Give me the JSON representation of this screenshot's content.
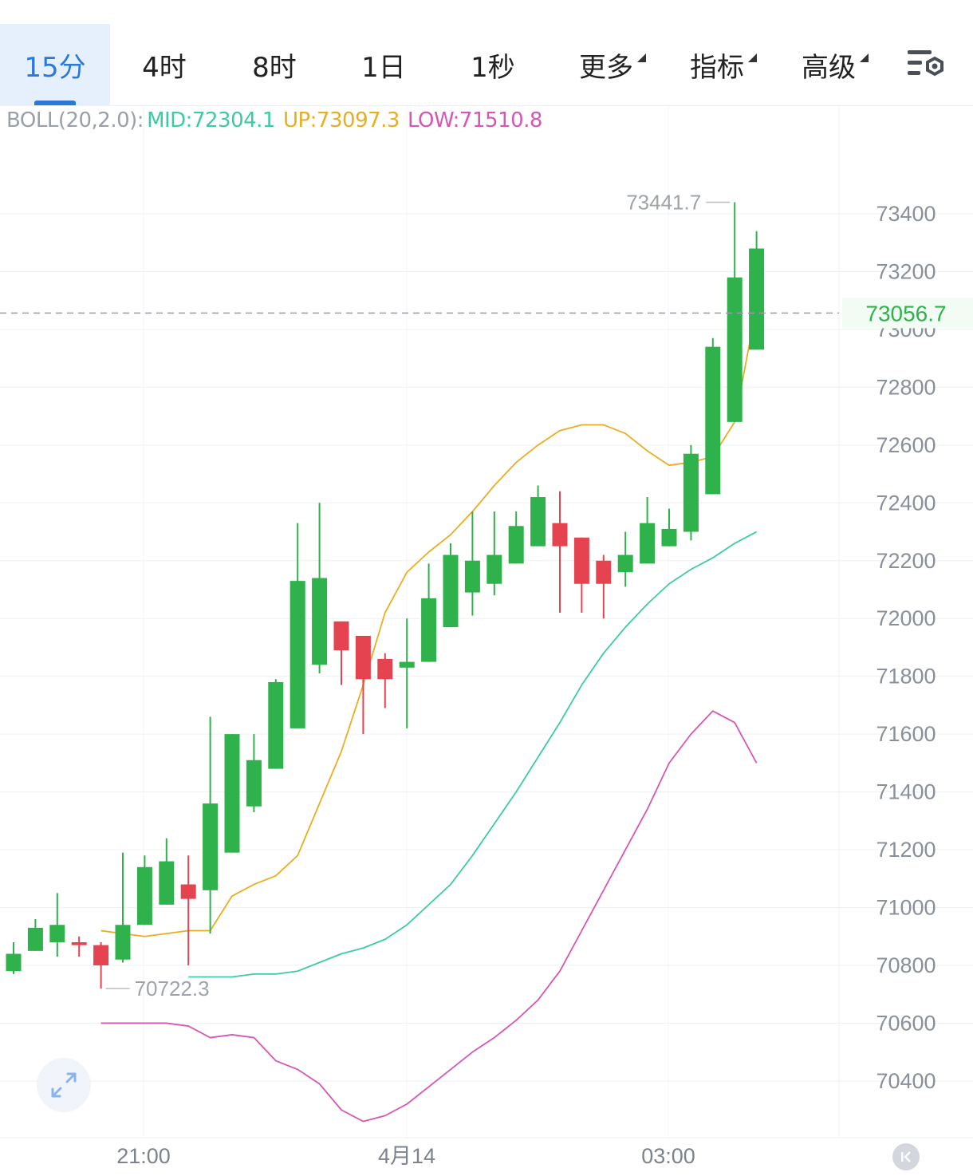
{
  "tabs": [
    {
      "label": "15分",
      "active": true
    },
    {
      "label": "4时"
    },
    {
      "label": "8时"
    },
    {
      "label": "1日"
    },
    {
      "label": "1秒"
    }
  ],
  "menus": [
    {
      "label": "更多"
    },
    {
      "label": "指标"
    },
    {
      "label": "高级"
    }
  ],
  "icons": {
    "settings": "chart-settings-icon",
    "expand": "expand-arrows-icon",
    "scroll": "scroll-to-latest-icon"
  },
  "legend": {
    "name": "BOLL(20,2.0):",
    "mid": "MID:72304.1",
    "up": "UP:73097.3",
    "low": "LOW:71510.8"
  },
  "colors": {
    "up_candle": "#2fb14b",
    "down_candle": "#e5434f",
    "mid_line": "#3ccba6",
    "up_line": "#e9ae20",
    "low_line": "#d656b4",
    "accent": "#2a78d8",
    "price_tag": "#2fb14b"
  },
  "chart_data": {
    "type": "candlestick",
    "y_ticks": [
      73400,
      73200,
      73000,
      72800,
      72600,
      72400,
      72200,
      72000,
      71800,
      71600,
      71400,
      71200,
      71000,
      70800,
      70600,
      70400
    ],
    "x_ticks": [
      "21:00",
      "4月14",
      "03:00"
    ],
    "y_range": [
      70250,
      73800
    ],
    "current_price": "73056.7",
    "max_label": "73441.7",
    "min_label": "70722.3",
    "candles": [
      {
        "o": 70780,
        "h": 70880,
        "l": 70770,
        "c": 70840
      },
      {
        "o": 70850,
        "h": 70960,
        "l": 70850,
        "c": 70930
      },
      {
        "o": 70880,
        "h": 71050,
        "l": 70830,
        "c": 70940
      },
      {
        "o": 70880,
        "h": 70900,
        "l": 70830,
        "c": 70870
      },
      {
        "o": 70870,
        "h": 70880,
        "l": 70720,
        "c": 70800
      },
      {
        "o": 70820,
        "h": 71190,
        "l": 70810,
        "c": 70940
      },
      {
        "o": 70940,
        "h": 71180,
        "l": 70940,
        "c": 71140
      },
      {
        "o": 71010,
        "h": 71240,
        "l": 71010,
        "c": 71160
      },
      {
        "o": 71080,
        "h": 71180,
        "l": 70800,
        "c": 71030
      },
      {
        "o": 71060,
        "h": 71660,
        "l": 70910,
        "c": 71360
      },
      {
        "o": 71190,
        "h": 71600,
        "l": 71190,
        "c": 71600
      },
      {
        "o": 71350,
        "h": 71600,
        "l": 71330,
        "c": 71510
      },
      {
        "o": 71480,
        "h": 71790,
        "l": 71480,
        "c": 71780
      },
      {
        "o": 71620,
        "h": 72330,
        "l": 71620,
        "c": 72130
      },
      {
        "o": 71840,
        "h": 72400,
        "l": 71810,
        "c": 72140
      },
      {
        "o": 71990,
        "h": 71990,
        "l": 71770,
        "c": 71890
      },
      {
        "o": 71940,
        "h": 71940,
        "l": 71600,
        "c": 71790
      },
      {
        "o": 71860,
        "h": 71880,
        "l": 71690,
        "c": 71790
      },
      {
        "o": 71830,
        "h": 72000,
        "l": 71620,
        "c": 71850
      },
      {
        "o": 71850,
        "h": 72190,
        "l": 71850,
        "c": 72070
      },
      {
        "o": 71970,
        "h": 72260,
        "l": 71970,
        "c": 72220
      },
      {
        "o": 72090,
        "h": 72370,
        "l": 72010,
        "c": 72200
      },
      {
        "o": 72120,
        "h": 72370,
        "l": 72080,
        "c": 72220
      },
      {
        "o": 72190,
        "h": 72370,
        "l": 72190,
        "c": 72320
      },
      {
        "o": 72250,
        "h": 72460,
        "l": 72250,
        "c": 72420
      },
      {
        "o": 72330,
        "h": 72440,
        "l": 72020,
        "c": 72250
      },
      {
        "o": 72280,
        "h": 72280,
        "l": 72020,
        "c": 72120
      },
      {
        "o": 72200,
        "h": 72220,
        "l": 72000,
        "c": 72120
      },
      {
        "o": 72160,
        "h": 72300,
        "l": 72110,
        "c": 72220
      },
      {
        "o": 72190,
        "h": 72420,
        "l": 72190,
        "c": 72330
      },
      {
        "o": 72250,
        "h": 72380,
        "l": 72250,
        "c": 72310
      },
      {
        "o": 72300,
        "h": 72600,
        "l": 72270,
        "c": 72570
      },
      {
        "o": 72430,
        "h": 72970,
        "l": 72430,
        "c": 72940
      },
      {
        "o": 72680,
        "h": 73440,
        "l": 72680,
        "c": 73180
      },
      {
        "o": 72930,
        "h": 73340,
        "l": 72930,
        "c": 73280
      }
    ],
    "series": [
      {
        "name": "UP",
        "values": [
          70920,
          70910,
          70900,
          70910,
          70920,
          70920,
          71040,
          71080,
          71110,
          71180,
          71360,
          71540,
          71770,
          72020,
          72160,
          72230,
          72290,
          72370,
          72460,
          72540,
          72600,
          72650,
          72670,
          72670,
          72640,
          72580,
          72530,
          72540,
          72560,
          72680,
          73080
        ]
      },
      {
        "name": "MID",
        "values": [
          70760,
          70760,
          70760,
          70770,
          70770,
          70780,
          70810,
          70840,
          70860,
          70890,
          70940,
          71010,
          71080,
          71180,
          71290,
          71400,
          71520,
          71640,
          71770,
          71880,
          71970,
          72050,
          72120,
          72170,
          72210,
          72260,
          72300
        ]
      },
      {
        "name": "LOW",
        "values": [
          70600,
          70600,
          70600,
          70600,
          70590,
          70550,
          70560,
          70550,
          70470,
          70440,
          70390,
          70300,
          70260,
          70280,
          70320,
          70380,
          70440,
          70500,
          70550,
          70610,
          70680,
          70780,
          70920,
          71060,
          71200,
          71340,
          71500,
          71600,
          71680,
          71640,
          71500
        ]
      }
    ],
    "grid": true
  }
}
